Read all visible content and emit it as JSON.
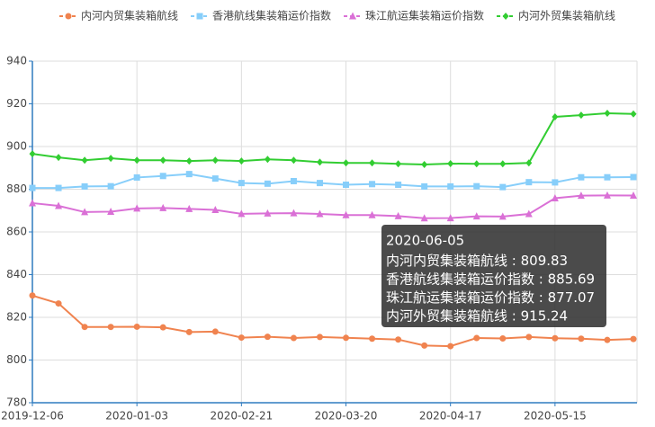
{
  "chart_data": {
    "type": "line",
    "categories": [
      "2019-12-06",
      null,
      null,
      null,
      "2020-01-03",
      null,
      null,
      null,
      "2020-02-21",
      null,
      null,
      null,
      "2020-03-20",
      null,
      null,
      null,
      "2020-04-17",
      null,
      null,
      null,
      "2020-05-15",
      null,
      null,
      "2020-06-05"
    ],
    "ylim": [
      780,
      940
    ],
    "yticks": [
      780,
      800,
      820,
      840,
      860,
      880,
      900,
      920,
      940
    ],
    "grid": true,
    "legend": "top",
    "series": [
      {
        "name": "内河内贸集装箱航线",
        "color": "#f0834f",
        "marker": "circle",
        "values": [
          830.2,
          826.5,
          815.5,
          815.5,
          815.6,
          815.3,
          813.1,
          813.3,
          810.5,
          810.9,
          810.3,
          810.8,
          810.4,
          810.0,
          809.6,
          806.8,
          806.5,
          810.3,
          810.1,
          810.8,
          810.2,
          810.0,
          809.4,
          809.83
        ]
      },
      {
        "name": "香港航线集装箱运价指数",
        "color": "#87cefa",
        "marker": "square",
        "values": [
          880.6,
          880.6,
          881.3,
          881.4,
          885.5,
          886.2,
          887.1,
          885.0,
          882.9,
          882.6,
          883.8,
          882.9,
          882.1,
          882.4,
          882.1,
          881.3,
          881.3,
          881.4,
          881.0,
          883.3,
          883.2,
          885.6,
          885.6,
          885.69
        ]
      },
      {
        "name": "珠江航运集装箱运价指数",
        "color": "#da70d6",
        "marker": "triangle",
        "values": [
          873.5,
          872.2,
          869.3,
          869.5,
          871.0,
          871.2,
          870.8,
          870.3,
          868.5,
          868.7,
          868.8,
          868.4,
          867.9,
          867.9,
          867.4,
          866.4,
          866.5,
          867.3,
          867.2,
          868.4,
          875.8,
          877.0,
          877.1,
          877.07
        ]
      },
      {
        "name": "内河外贸集装箱航线",
        "color": "#32cd32",
        "marker": "diamond",
        "values": [
          896.6,
          894.9,
          893.6,
          894.5,
          893.6,
          893.6,
          893.2,
          893.6,
          893.2,
          894.0,
          893.6,
          892.7,
          892.3,
          892.3,
          891.9,
          891.6,
          892.0,
          891.9,
          891.9,
          892.3,
          913.9,
          914.7,
          915.6,
          915.24
        ]
      }
    ],
    "tooltip_index": 23,
    "tooltip_separator": " : "
  }
}
